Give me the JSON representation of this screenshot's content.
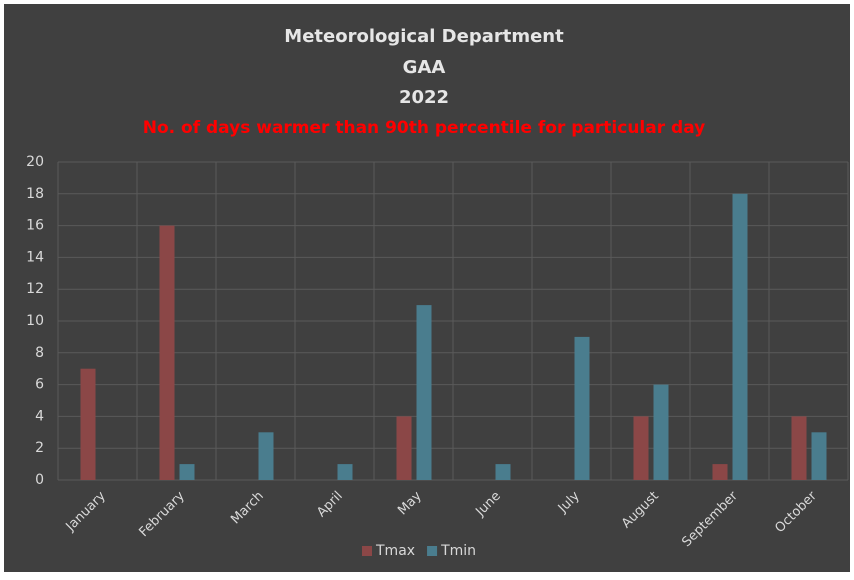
{
  "chart_data": {
    "type": "bar",
    "title_lines": [
      "Meteorological Department",
      "GAA",
      "2022"
    ],
    "subtitle": "No. of days warmer than 90th percentile for particular day",
    "categories": [
      "January",
      "February",
      "March",
      "April",
      "May",
      "June",
      "July",
      "August",
      "September",
      "October"
    ],
    "series": [
      {
        "name": "Tmax",
        "color": "#8b4747",
        "values": [
          7,
          16,
          0,
          0,
          4,
          0,
          0,
          4,
          1,
          4
        ]
      },
      {
        "name": "Tmin",
        "color": "#4a7d8e",
        "values": [
          0,
          1,
          3,
          1,
          11,
          1,
          9,
          6,
          18,
          3
        ]
      }
    ],
    "ylim": [
      0,
      20
    ],
    "yticks": [
      0,
      2,
      4,
      6,
      8,
      10,
      12,
      14,
      16,
      18,
      20
    ],
    "grid": true,
    "legend": "bottom"
  }
}
